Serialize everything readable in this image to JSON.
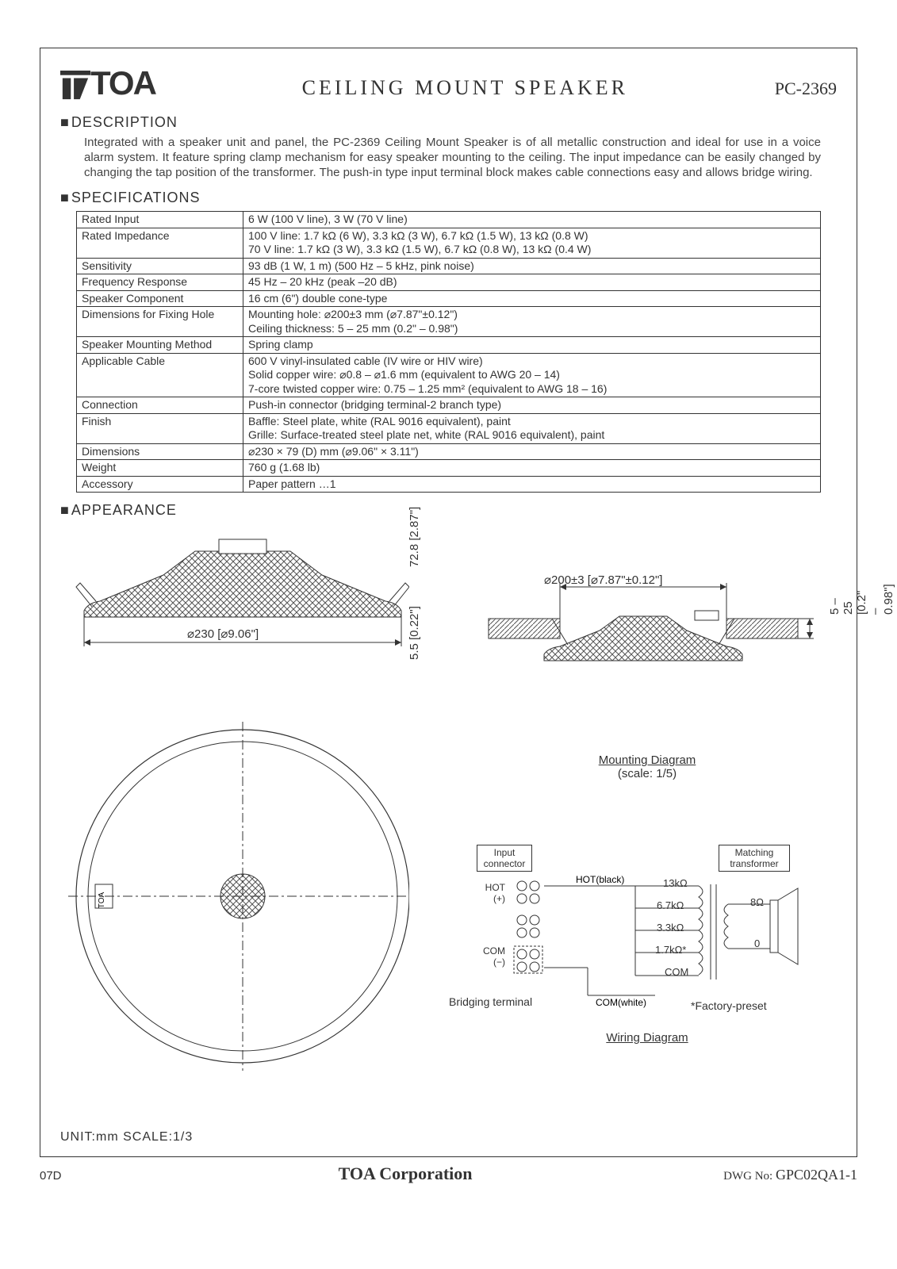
{
  "header": {
    "logo_text": "TOA",
    "title": "CEILING MOUNT SPEAKER",
    "model": "PC-2369"
  },
  "sections": {
    "description_head": "DESCRIPTION",
    "specifications_head": "SPECIFICATIONS",
    "appearance_head": "APPEARANCE"
  },
  "description": "Integrated with a speaker unit and panel, the PC-2369 Ceiling Mount Speaker is of all metallic construction and ideal for use in a voice alarm system. It feature spring clamp mechanism for easy speaker mounting to the ceiling. The input impedance can be easily changed by changing the tap position of the transformer. The push-in type input terminal block makes cable connections easy and allows bridge wiring.",
  "spec_rows": [
    {
      "label": "Rated Input",
      "value": "6 W (100 V line), 3 W (70 V line)"
    },
    {
      "label": "Rated Impedance",
      "value": "100 V line: 1.7 kΩ (6 W), 3.3 kΩ (3 W), 6.7 kΩ (1.5 W), 13 kΩ (0.8 W)\n70 V line: 1.7 kΩ (3 W), 3.3 kΩ (1.5 W), 6.7 kΩ (0.8 W), 13 kΩ (0.4 W)"
    },
    {
      "label": "Sensitivity",
      "value": "93 dB (1 W, 1 m) (500 Hz – 5 kHz, pink noise)"
    },
    {
      "label": "Frequency Response",
      "value": "45 Hz – 20 kHz (peak –20 dB)"
    },
    {
      "label": "Speaker Component",
      "value": "16 cm (6\") double cone-type"
    },
    {
      "label": "Dimensions for Fixing Hole",
      "value": "Mounting hole: ⌀200±3 mm (⌀7.87\"±0.12\")\nCeiling thickness: 5 – 25 mm (0.2\" – 0.98\")"
    },
    {
      "label": "Speaker Mounting Method",
      "value": "Spring clamp"
    },
    {
      "label": "Applicable Cable",
      "value": "600 V vinyl-insulated cable (IV wire or HIV wire)\nSolid copper wire: ⌀0.8 – ⌀1.6 mm (equivalent to AWG 20 – 14)\n7-core twisted copper wire: 0.75 – 1.25 mm² (equivalent to AWG 18 – 16)"
    },
    {
      "label": "Connection",
      "value": "Push-in connector (bridging terminal-2 branch type)"
    },
    {
      "label": "Finish",
      "value": "Baffle: Steel plate, white (RAL 9016 equivalent), paint\nGrille: Surface-treated steel plate net, white (RAL 9016 equivalent), paint"
    },
    {
      "label": "Dimensions",
      "value": "⌀230 × 79 (D) mm (⌀9.06\" × 3.11\")"
    },
    {
      "label": "Weight",
      "value": "760 g (1.68 lb)"
    },
    {
      "label": "Accessory",
      "value": "Paper pattern …1"
    }
  ],
  "appearance": {
    "dia230": "⌀230 [⌀9.06\"]",
    "h72": "72.8 [2.87\"]",
    "h55": "5.5 [0.22\"]",
    "cut_dia": "⌀200±3 [⌀7.87\"±0.12\"]",
    "thickness": "5 – 25 [0.2\" – 0.98\"]",
    "mounting_caption": "Mounting Diagram",
    "mounting_scale": "(scale: 1/5)",
    "wiring_caption": "Wiring Diagram",
    "input_connector": "Input\nconnector",
    "matching_transformer": "Matching\ntransformer",
    "hot": "HOT\n(+)",
    "com": "COM\n(−)",
    "hot_black": "HOT(black)",
    "com_white": "COM(white)",
    "bridging": "Bridging terminal",
    "factory": "*Factory-preset",
    "tap13": "13kΩ",
    "tap67": "6.7kΩ",
    "tap33": "3.3kΩ",
    "tap17": "1.7kΩ*",
    "com_right": "COM",
    "ohm8": "8Ω",
    "ohm0": "0"
  },
  "unit_scale": "UNIT:mm   SCALE:1/3",
  "footer": {
    "rev": "07D",
    "corp": "TOA Corporation",
    "dwg_label": "DWG No:",
    "dwg_no": "GPC02QA1-1"
  },
  "colors": {
    "line": "#333333",
    "hatch": "#555555",
    "bg": "#ffffff"
  }
}
